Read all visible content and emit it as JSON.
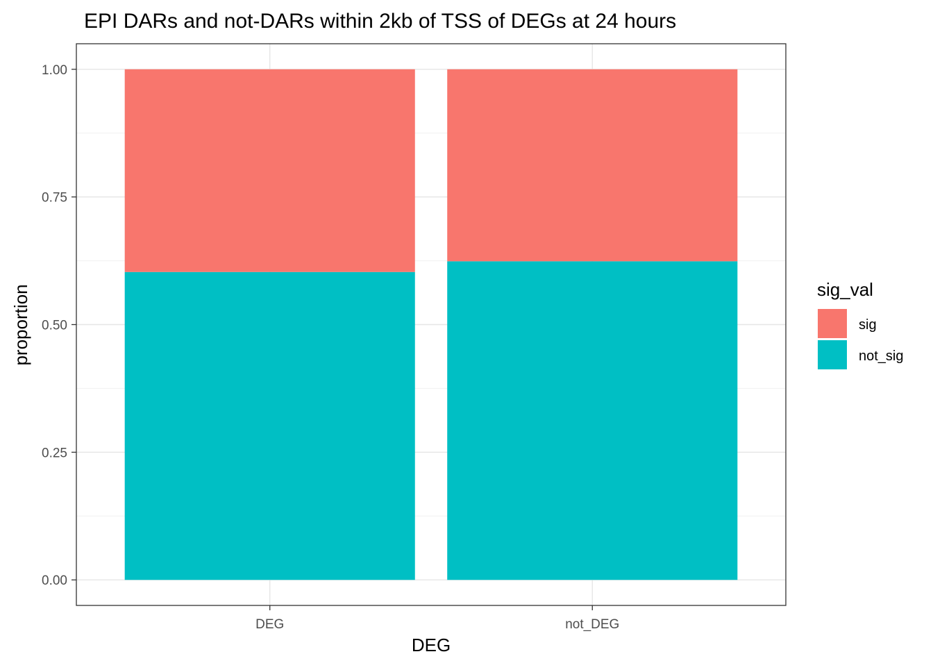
{
  "chart_data": {
    "type": "bar",
    "stacked": true,
    "title": "EPI DARs and not-DARs within 2kb of TSS of DEGs at 24 hours",
    "xlabel": "DEG",
    "ylabel": "proportion",
    "categories": [
      "DEG",
      "not_DEG"
    ],
    "series": [
      {
        "name": "sig",
        "values": [
          0.397,
          0.376
        ],
        "color": "#F8766D"
      },
      {
        "name": "not_sig",
        "values": [
          0.603,
          0.624
        ],
        "color": "#00BFC4"
      }
    ],
    "ylim": [
      -0.05,
      1.05
    ],
    "yticks": [
      0.0,
      0.25,
      0.5,
      0.75,
      1.0
    ],
    "ytick_labels": [
      "0.00",
      "0.25",
      "0.50",
      "0.75",
      "1.00"
    ],
    "grid": true,
    "legend": {
      "title": "sig_val",
      "placement": "right",
      "entries": [
        "sig",
        "not_sig"
      ]
    }
  }
}
